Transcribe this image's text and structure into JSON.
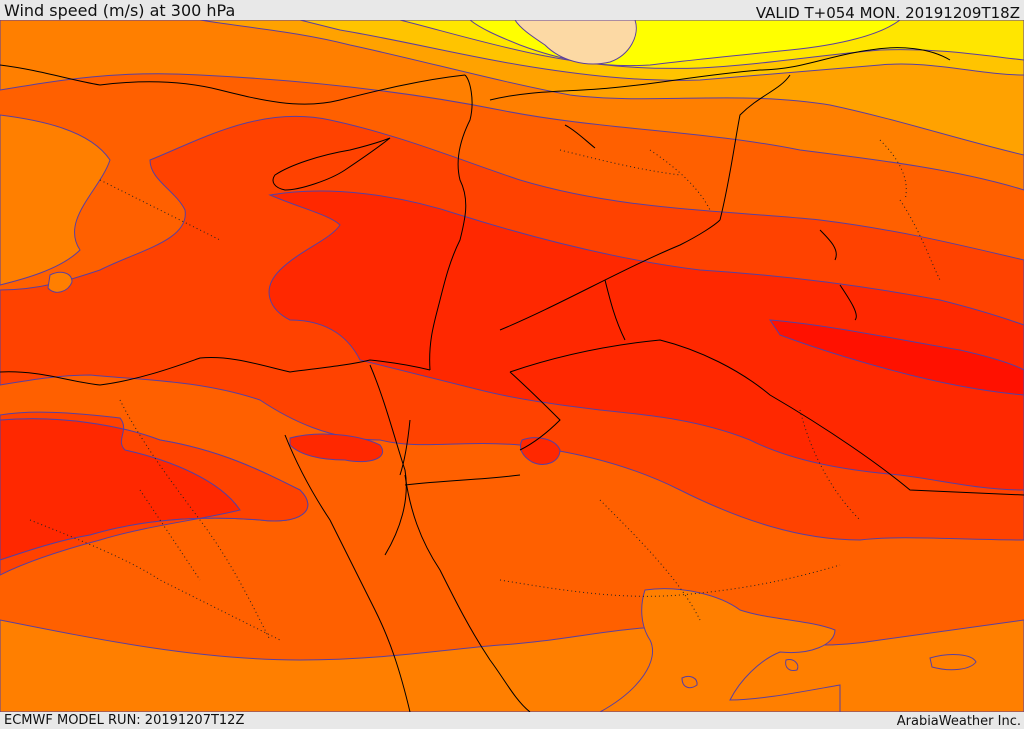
{
  "header": {
    "title": "Wind speed (m/s) at 300 hPa",
    "valid": "VALID T+054 MON. 20191209T18Z"
  },
  "footer": {
    "model_run": "ECMWF MODEL RUN: 20191207T12Z",
    "credit": "ArabiaWeather Inc."
  },
  "map": {
    "field": "wind speed",
    "units": "m/s",
    "level": "300 hPa",
    "colors": {
      "pale_peach": "#fcd9a4",
      "yellow": "#ffff00",
      "light_yellow": "#ffe600",
      "yellow_orange": "#ffc400",
      "light_orange": "#ffa200",
      "orange": "#ff7f00",
      "dark_orange": "#ff6000",
      "red_orange": "#ff4200",
      "red": "#ff2800",
      "deep_red": "#ff1100",
      "crimson": "#ff0000",
      "contour_line": "#5a3f9f",
      "coastline": "#000000"
    }
  }
}
